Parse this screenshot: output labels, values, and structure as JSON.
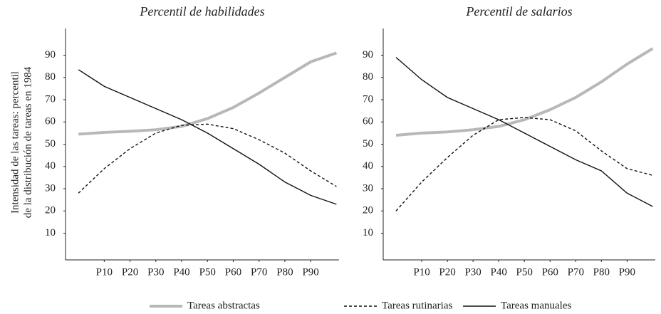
{
  "ylabel": [
    "Intensidad de las tareas: percentil",
    "de la distribución de tareas en 1984"
  ],
  "chart_data": [
    {
      "type": "line",
      "title": "Percentil de habilidades",
      "x": [
        0,
        10,
        20,
        30,
        40,
        50,
        60,
        70,
        80,
        90,
        100
      ],
      "xlim": [
        -5,
        101
      ],
      "xticks": [
        {
          "value": 10,
          "label": "P10"
        },
        {
          "value": 20,
          "label": "P20"
        },
        {
          "value": 30,
          "label": "P30"
        },
        {
          "value": 40,
          "label": "P40"
        },
        {
          "value": 50,
          "label": "P50"
        },
        {
          "value": 60,
          "label": "P60"
        },
        {
          "value": 70,
          "label": "P70"
        },
        {
          "value": 80,
          "label": "P80"
        },
        {
          "value": 90,
          "label": "P90"
        }
      ],
      "ylim": [
        -2,
        102
      ],
      "yticks": [
        10,
        20,
        30,
        40,
        50,
        60,
        70,
        80,
        90
      ],
      "series": [
        {
          "name": "Tareas abstractas",
          "color": "#b8b8b8",
          "dash": "solid",
          "values": [
            54.5,
            55.3,
            55.8,
            56.5,
            58,
            61.5,
            66.5,
            73,
            80,
            87,
            91
          ]
        },
        {
          "name": "Tareas rutinarias",
          "color": "#111111",
          "dash": "dashed",
          "values": [
            28,
            39,
            48,
            55,
            58.5,
            59,
            57,
            52,
            46,
            38,
            31
          ]
        },
        {
          "name": "Tareas manuales",
          "color": "#111111",
          "dash": "solid",
          "values": [
            83.5,
            76,
            71,
            66,
            61,
            55,
            48,
            41,
            33,
            27,
            23
          ]
        }
      ]
    },
    {
      "type": "line",
      "title": "Percentil de salarios",
      "x": [
        0,
        10,
        20,
        30,
        40,
        50,
        60,
        70,
        80,
        90,
        100
      ],
      "xlim": [
        -5,
        101
      ],
      "xticks": [
        {
          "value": 10,
          "label": "P10"
        },
        {
          "value": 20,
          "label": "P20"
        },
        {
          "value": 30,
          "label": "P30"
        },
        {
          "value": 40,
          "label": "P40"
        },
        {
          "value": 50,
          "label": "P50"
        },
        {
          "value": 60,
          "label": "P60"
        },
        {
          "value": 70,
          "label": "P70"
        },
        {
          "value": 80,
          "label": "P80"
        },
        {
          "value": 90,
          "label": "P90"
        }
      ],
      "ylim": [
        -2,
        102
      ],
      "yticks": [
        10,
        20,
        30,
        40,
        50,
        60,
        70,
        80,
        90
      ],
      "series": [
        {
          "color": "#b8b8b8",
          "dash": "solid",
          "values": [
            54,
            55,
            55.5,
            56.5,
            58,
            61,
            65.5,
            71,
            78,
            86,
            93
          ]
        },
        {
          "color": "#111111",
          "dash": "dashed",
          "values": [
            20,
            33,
            44,
            54,
            61,
            62,
            61,
            56,
            47,
            39,
            36
          ]
        },
        {
          "color": "#111111",
          "dash": "solid",
          "values": [
            89,
            79,
            71,
            66,
            61,
            55,
            49,
            43,
            38,
            28,
            22
          ]
        }
      ]
    }
  ]
}
